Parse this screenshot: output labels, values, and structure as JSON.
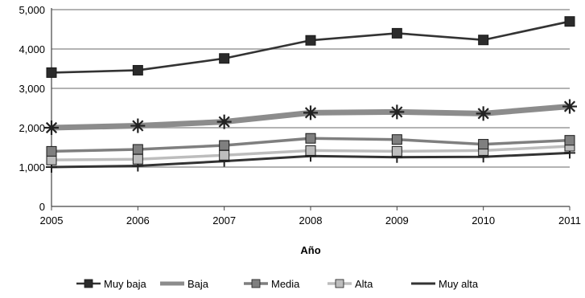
{
  "chart_data": {
    "type": "line",
    "title": "",
    "xlabel": "Año",
    "ylabel": "",
    "x": [
      2005,
      2006,
      2007,
      2008,
      2009,
      2010,
      2011
    ],
    "x_tick_labels": [
      "2005",
      "2006",
      "2007",
      "2008",
      "2009",
      "2010",
      "2011"
    ],
    "ylim": [
      0,
      5000
    ],
    "y_ticks": [
      0,
      1000,
      2000,
      3000,
      4000,
      5000
    ],
    "y_tick_labels": [
      "0",
      "1,000",
      "2,000",
      "3,000",
      "4,000",
      "5,000"
    ],
    "grid": "horizontal",
    "legend_position": "bottom",
    "series": [
      {
        "name": "Muy baja",
        "color": "#333333",
        "marker": "square",
        "values": [
          3400,
          3460,
          3760,
          4220,
          4400,
          4230,
          4700
        ]
      },
      {
        "name": "Baja",
        "color": "#8c8c8c",
        "marker": "star",
        "values": [
          2000,
          2050,
          2150,
          2380,
          2400,
          2360,
          2540
        ]
      },
      {
        "name": "Media",
        "color": "#7f7f7f",
        "marker": "square",
        "values": [
          1400,
          1450,
          1550,
          1730,
          1700,
          1580,
          1680
        ]
      },
      {
        "name": "Alta",
        "color": "#bdbdbd",
        "marker": "square",
        "values": [
          1180,
          1200,
          1300,
          1420,
          1400,
          1420,
          1530
        ]
      },
      {
        "name": "Muy alta",
        "color": "#333333",
        "marker": "plus",
        "values": [
          1000,
          1030,
          1150,
          1280,
          1250,
          1260,
          1360
        ]
      }
    ]
  }
}
